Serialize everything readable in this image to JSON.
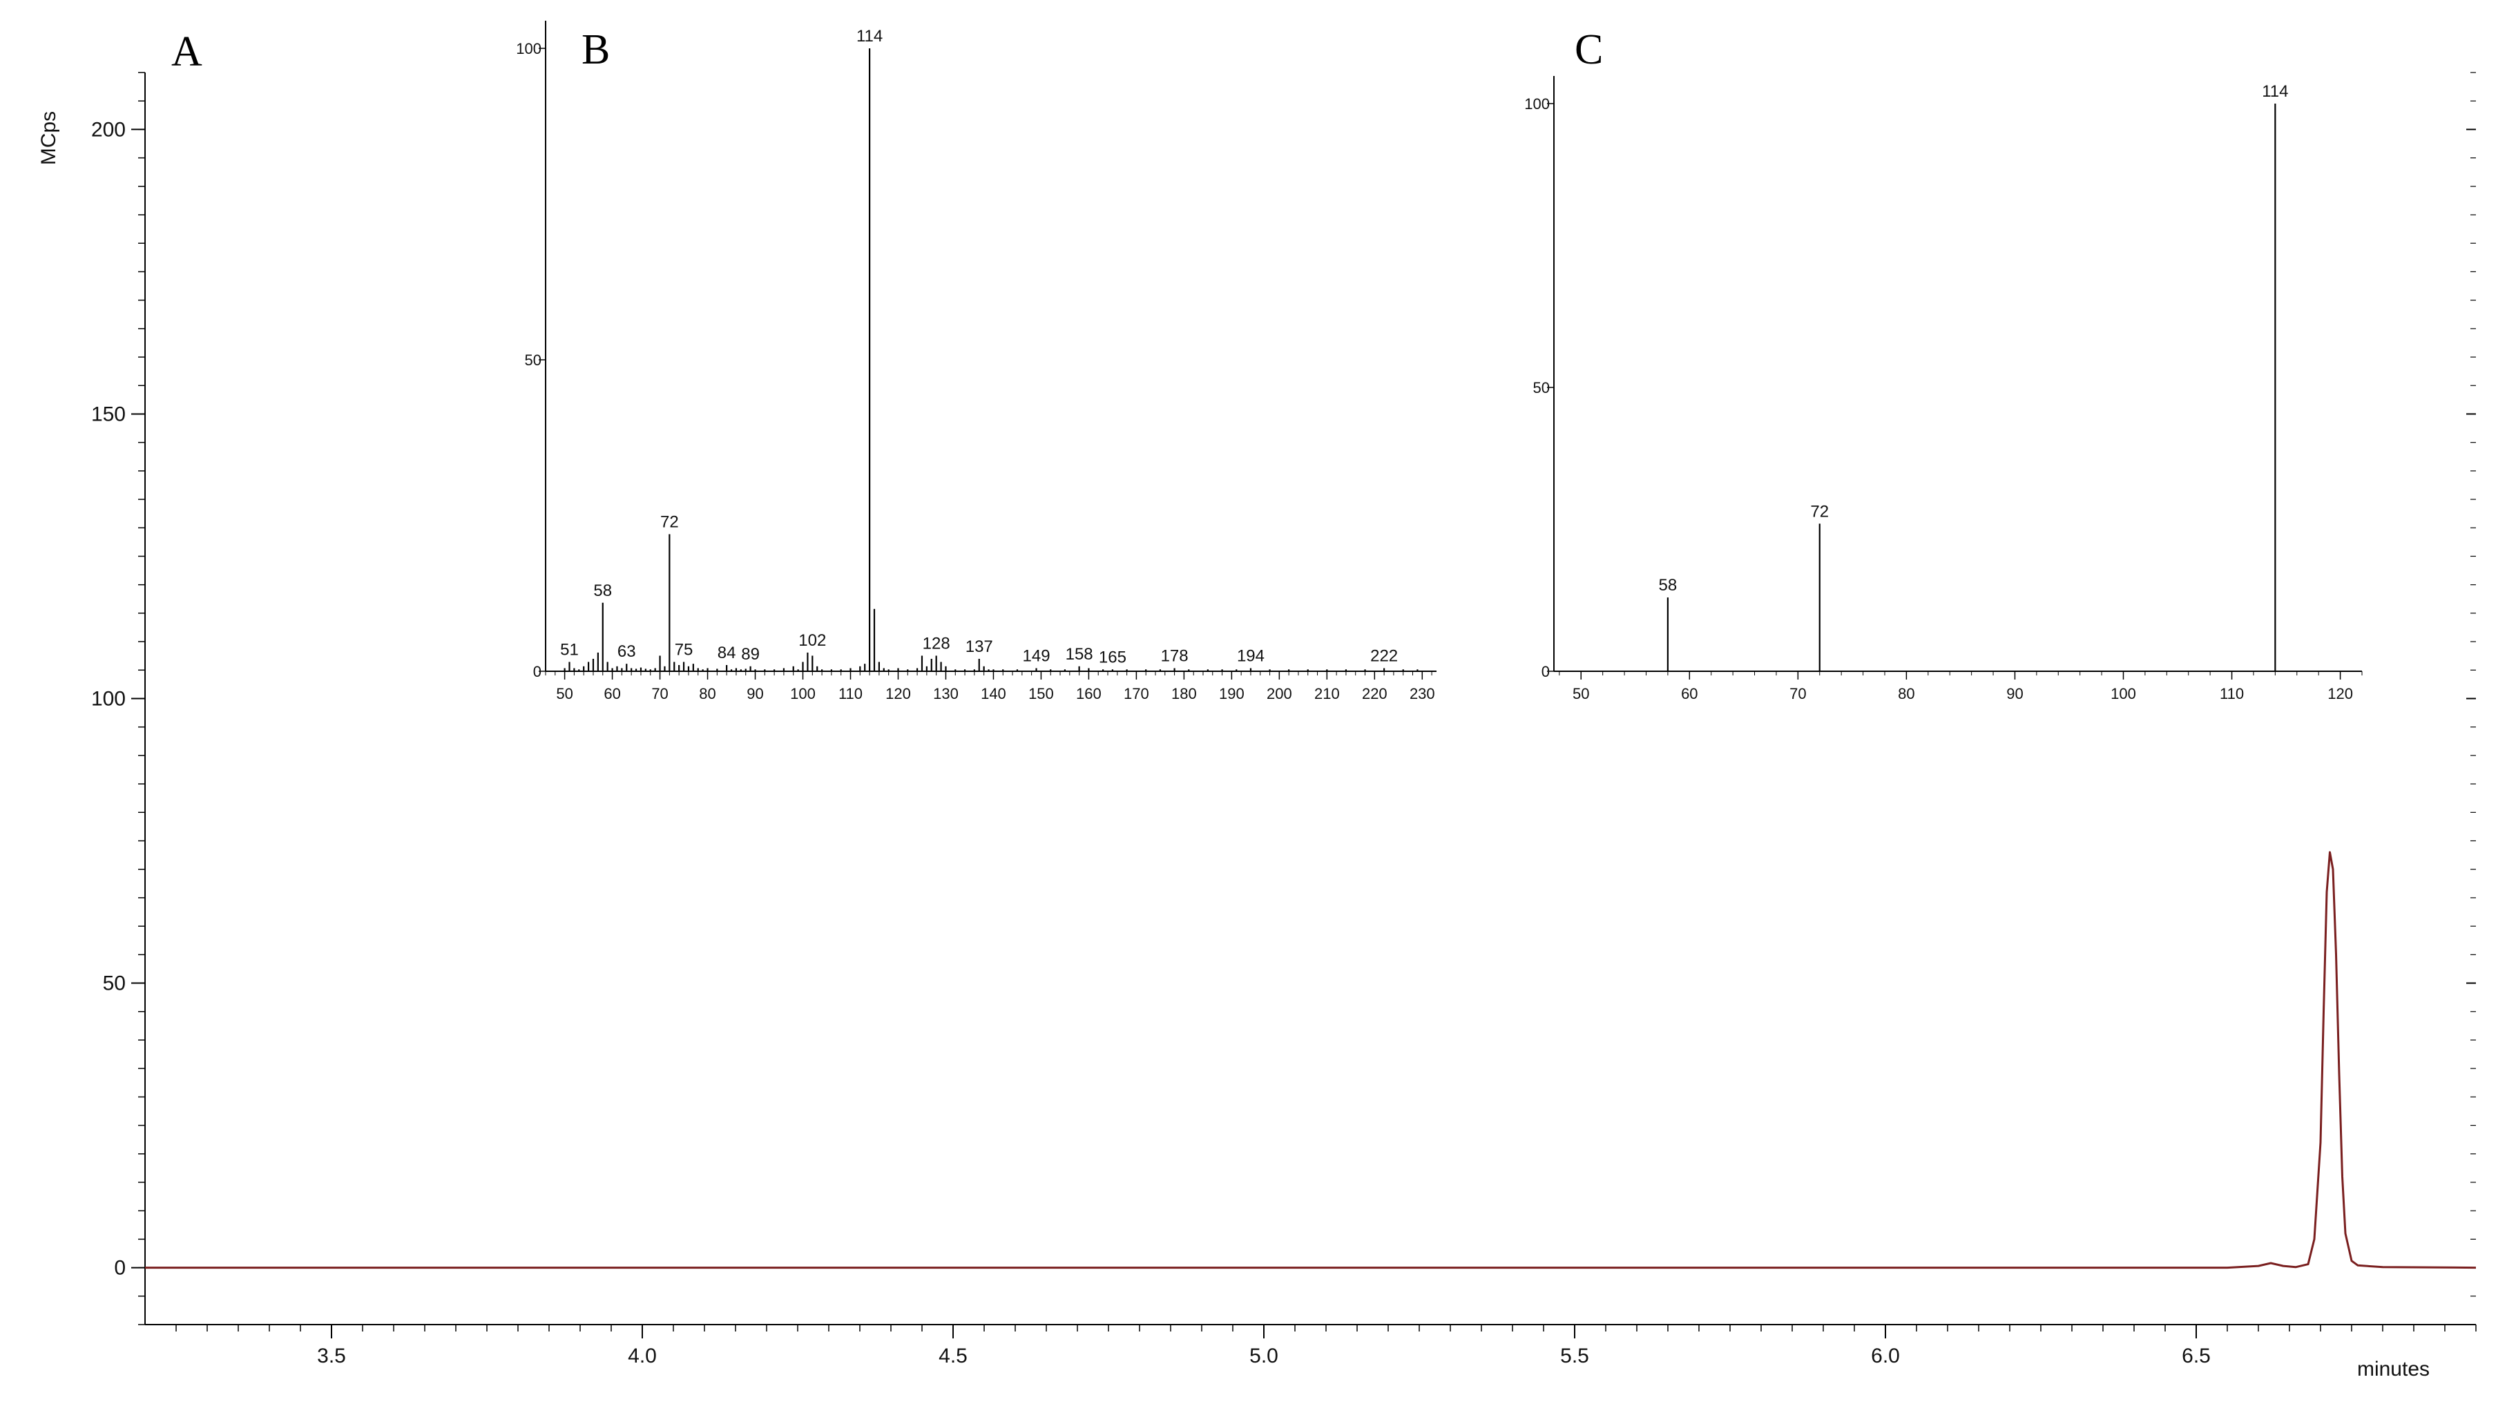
{
  "panels": [
    {
      "letter": "A"
    },
    {
      "letter": "B"
    },
    {
      "letter": "C"
    }
  ],
  "chart_data": [
    {
      "type": "line",
      "panel": "A",
      "xlabel": "minutes",
      "ylabel": "MCps",
      "xlim": [
        3.2,
        6.95
      ],
      "ylim": [
        -10,
        210
      ],
      "x_ticks": [
        3.5,
        4.0,
        4.5,
        5.0,
        5.5,
        6.0,
        6.5
      ],
      "x_tick_labels": [
        "3.5",
        "4.0",
        "4.5",
        "5.0",
        "5.5",
        "6.0",
        "6.5"
      ],
      "y_ticks": [
        0,
        50,
        100,
        150,
        200
      ],
      "y_tick_labels": [
        "0",
        "50",
        "100",
        "150",
        "200"
      ],
      "color": "#7a1f1f",
      "series": [
        {
          "x": [
            3.2,
            6.55,
            6.6,
            6.62,
            6.64,
            6.66,
            6.68,
            6.69,
            6.7,
            6.705,
            6.71,
            6.715,
            6.72,
            6.725,
            6.73,
            6.735,
            6.74,
            6.75,
            6.76,
            6.8,
            6.95
          ],
          "y": [
            0,
            0,
            0.3,
            0.8,
            0.3,
            0.1,
            0.6,
            5,
            22,
            45,
            66,
            73,
            70,
            55,
            34,
            16,
            6,
            1.2,
            0.4,
            0.1,
            0
          ]
        }
      ]
    },
    {
      "type": "bar",
      "panel": "B",
      "xlim": [
        46,
        233
      ],
      "ylim": [
        0,
        100
      ],
      "x_ticks": [
        50,
        60,
        70,
        80,
        90,
        100,
        110,
        120,
        130,
        140,
        150,
        160,
        170,
        180,
        190,
        200,
        210,
        220,
        230
      ],
      "x_tick_labels": [
        "50",
        "60",
        "70",
        "80",
        "90",
        "100",
        "110",
        "120",
        "130",
        "140",
        "150",
        "160",
        "170",
        "180",
        "190",
        "200",
        "210",
        "220",
        "230"
      ],
      "y_ticks": [
        0,
        50,
        100
      ],
      "y_tick_labels": [
        "0",
        "50",
        "100"
      ],
      "x": [
        50,
        51,
        52,
        53,
        54,
        55,
        56,
        57,
        58,
        59,
        60,
        61,
        62,
        63,
        64,
        65,
        66,
        67,
        68,
        69,
        70,
        71,
        72,
        73,
        74,
        75,
        76,
        77,
        78,
        79,
        80,
        82,
        84,
        85,
        86,
        87,
        88,
        89,
        90,
        92,
        94,
        96,
        98,
        99,
        100,
        101,
        102,
        103,
        104,
        106,
        108,
        110,
        112,
        113,
        114,
        115,
        116,
        117,
        118,
        120,
        122,
        124,
        125,
        126,
        127,
        128,
        129,
        130,
        132,
        134,
        136,
        137,
        138,
        139,
        140,
        142,
        145,
        149,
        152,
        155,
        158,
        160,
        163,
        165,
        168,
        172,
        175,
        178,
        181,
        185,
        188,
        191,
        194,
        198,
        202,
        206,
        210,
        214,
        218,
        222,
        226,
        229
      ],
      "values": [
        0.5,
        1.5,
        0.5,
        0.3,
        0.8,
        1.5,
        2,
        3,
        11,
        1.5,
        0.5,
        0.8,
        0.5,
        1.2,
        0.5,
        0.4,
        0.6,
        0.4,
        0.3,
        0.5,
        2.5,
        0.8,
        22,
        1.5,
        1,
        1.5,
        0.8,
        1.2,
        0.5,
        0.3,
        0.5,
        0.4,
        1,
        0.3,
        0.5,
        0.3,
        0.4,
        0.8,
        0.3,
        0.3,
        0.3,
        0.5,
        0.8,
        0.3,
        1.5,
        3,
        2.5,
        0.8,
        0.3,
        0.3,
        0.3,
        0.5,
        0.8,
        1.2,
        100,
        10,
        1.5,
        0.5,
        0.3,
        0.5,
        0.3,
        0.5,
        2.5,
        0.8,
        2,
        2.5,
        1.5,
        0.8,
        0.3,
        0.3,
        0.3,
        2,
        0.8,
        0.3,
        0.3,
        0.3,
        0.3,
        0.5,
        0.3,
        0.3,
        0.8,
        0.5,
        0.3,
        0.3,
        0.3,
        0.3,
        0.3,
        0.5,
        0.3,
        0.3,
        0.3,
        0.3,
        0.5,
        0.3,
        0.3,
        0.3,
        0.3,
        0.3,
        0.3,
        0.5,
        0.3,
        0.3
      ],
      "labels": [
        {
          "x": 51,
          "y": 1.5,
          "text": "51"
        },
        {
          "x": 58,
          "y": 11,
          "text": "58"
        },
        {
          "x": 63,
          "y": 1.2,
          "text": "63"
        },
        {
          "x": 72,
          "y": 22,
          "text": "72"
        },
        {
          "x": 75,
          "y": 1.5,
          "text": "75"
        },
        {
          "x": 84,
          "y": 1,
          "text": "84"
        },
        {
          "x": 89,
          "y": 0.8,
          "text": "89"
        },
        {
          "x": 102,
          "y": 3,
          "text": "102"
        },
        {
          "x": 114,
          "y": 100,
          "text": "114"
        },
        {
          "x": 128,
          "y": 2.5,
          "text": "128"
        },
        {
          "x": 137,
          "y": 2,
          "text": "137"
        },
        {
          "x": 149,
          "y": 0.5,
          "text": "149"
        },
        {
          "x": 158,
          "y": 0.8,
          "text": "158"
        },
        {
          "x": 165,
          "y": 0.3,
          "text": "165"
        },
        {
          "x": 178,
          "y": 0.5,
          "text": "178"
        },
        {
          "x": 194,
          "y": 0.5,
          "text": "194"
        },
        {
          "x": 222,
          "y": 0.5,
          "text": "222"
        }
      ]
    },
    {
      "type": "bar",
      "panel": "C",
      "xlim": [
        47.5,
        122
      ],
      "ylim": [
        0,
        100
      ],
      "x_ticks": [
        50,
        60,
        70,
        80,
        90,
        100,
        110,
        120
      ],
      "x_tick_labels": [
        "50",
        "60",
        "70",
        "80",
        "90",
        "100",
        "110",
        "120"
      ],
      "y_ticks": [
        0,
        50,
        100
      ],
      "y_tick_labels": [
        "0",
        "50",
        "100"
      ],
      "x": [
        58,
        72,
        114
      ],
      "values": [
        13,
        26,
        100
      ],
      "labels": [
        {
          "x": 58,
          "y": 13,
          "text": "58"
        },
        {
          "x": 72,
          "y": 26,
          "text": "72"
        },
        {
          "x": 114,
          "y": 100,
          "text": "114"
        }
      ]
    }
  ]
}
